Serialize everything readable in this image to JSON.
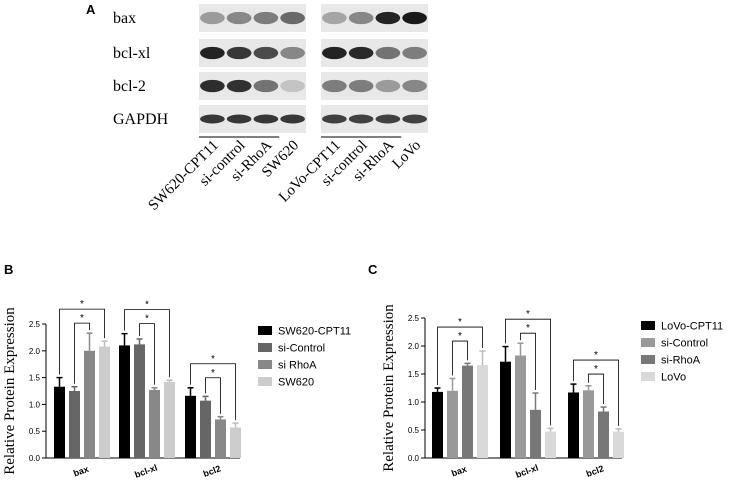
{
  "panels": {
    "a": "A",
    "b": "B",
    "c": "C"
  },
  "blot": {
    "proteins": [
      "bax",
      "bcl-xl",
      "bcl-2",
      "GAPDH"
    ],
    "groups": [
      {
        "lanes": [
          "SW620-CPT11",
          "si-control",
          "si-RhoA",
          "SW620"
        ],
        "intensity": [
          [
            0.35,
            0.45,
            0.5,
            0.6
          ],
          [
            0.95,
            0.85,
            0.75,
            0.45
          ],
          [
            0.9,
            0.88,
            0.55,
            0.15
          ],
          [
            0.85,
            0.85,
            0.85,
            0.85
          ]
        ]
      },
      {
        "lanes": [
          "LoVo-CPT11",
          "si-control",
          "si-RhoA",
          "LoVo"
        ],
        "intensity": [
          [
            0.3,
            0.45,
            0.95,
            1.0
          ],
          [
            0.95,
            0.92,
            0.55,
            0.5
          ],
          [
            0.5,
            0.5,
            0.35,
            0.45
          ],
          [
            0.8,
            0.8,
            0.8,
            0.8
          ]
        ]
      }
    ]
  },
  "chart_data": [
    {
      "type": "bar",
      "ylabel": "Relative Protein Expression",
      "ylim": [
        0,
        2.5
      ],
      "yticks": [
        "0.0",
        "0.5",
        "1.0",
        "1.5",
        "2.0",
        "2.5"
      ],
      "categories": [
        "bax",
        "bcl-xl",
        "bcl2"
      ],
      "series": [
        {
          "name": "SW620-CPT11",
          "color": "#000000",
          "values": [
            1.33,
            2.1,
            1.16
          ],
          "errors": [
            0.17,
            0.22,
            0.15
          ]
        },
        {
          "name": "si-Control",
          "color": "#666666",
          "values": [
            1.25,
            2.12,
            1.07
          ],
          "errors": [
            0.08,
            0.1,
            0.08
          ]
        },
        {
          "name": "si RhoA",
          "color": "#888888",
          "values": [
            2.0,
            1.27,
            0.72
          ],
          "errors": [
            0.33,
            0.04,
            0.05
          ]
        },
        {
          "name": "SW620",
          "color": "#cccccc",
          "values": [
            2.08,
            1.42,
            0.57
          ],
          "errors": [
            0.1,
            0.03,
            0.08
          ]
        }
      ],
      "significance": [
        "*",
        "*",
        "*",
        "*",
        "*",
        "*"
      ],
      "legend": "right"
    },
    {
      "type": "bar",
      "ylabel": "Relative Protein Expression",
      "ylim": [
        0,
        2.5
      ],
      "yticks": [
        "0.0",
        "0.5",
        "1.0",
        "1.5",
        "2.0",
        "2.5"
      ],
      "categories": [
        "bax",
        "bcl-xl",
        "bcl2"
      ],
      "series": [
        {
          "name": "LoVo-CPT11",
          "color": "#000000",
          "values": [
            1.18,
            1.72,
            1.17
          ],
          "errors": [
            0.07,
            0.27,
            0.15
          ]
        },
        {
          "name": "si-Control",
          "color": "#999999",
          "values": [
            1.2,
            1.83,
            1.21
          ],
          "errors": [
            0.22,
            0.22,
            0.08
          ]
        },
        {
          "name": "si-RhoA",
          "color": "#777777",
          "values": [
            1.65,
            0.86,
            0.83
          ],
          "errors": [
            0.04,
            0.3,
            0.08
          ]
        },
        {
          "name": "LoVo",
          "color": "#d9d9d9",
          "values": [
            1.66,
            0.47,
            0.47
          ],
          "errors": [
            0.25,
            0.06,
            0.05
          ]
        }
      ],
      "significance": [
        "*",
        "*",
        "*",
        "*",
        "*",
        "*"
      ],
      "legend": "right"
    }
  ]
}
